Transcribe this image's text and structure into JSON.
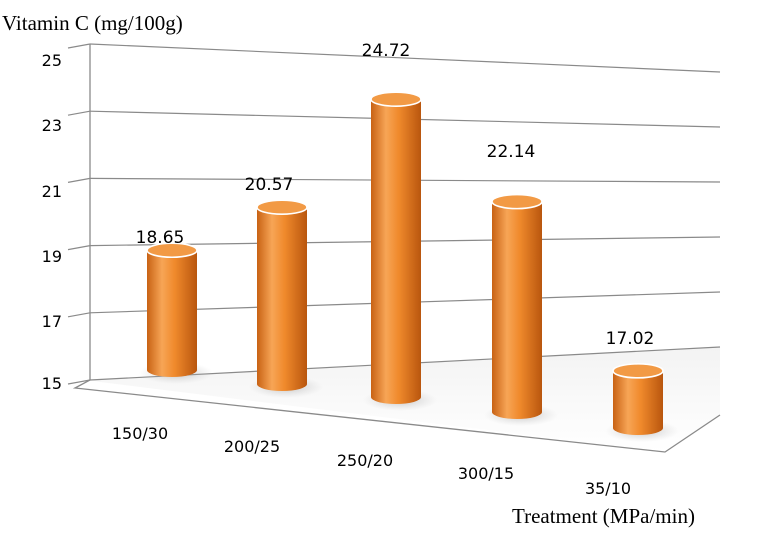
{
  "chart_data": {
    "type": "bar",
    "style": "3d-cylinder",
    "ylabel": "Vitamin C (mg/100g)",
    "xlabel": "Treatment (MPa/min)",
    "categories": [
      "150/30",
      "200/25",
      "250/20",
      "300/15",
      "35/10"
    ],
    "values": [
      18.65,
      20.57,
      24.72,
      22.14,
      17.02
    ],
    "data_labels": [
      "18.65",
      "20.57",
      "24.72",
      "22.14",
      "17.02"
    ],
    "y_ticks": [
      "15",
      "17",
      "19",
      "21",
      "23",
      "25"
    ],
    "ylim": [
      15,
      25
    ],
    "grid": true,
    "legend": "none",
    "colors": {
      "bar": "#f08a2c",
      "bar_light": "#f7b46a",
      "bar_dark": "#c85f12",
      "grid": "#8a8a8a"
    }
  }
}
